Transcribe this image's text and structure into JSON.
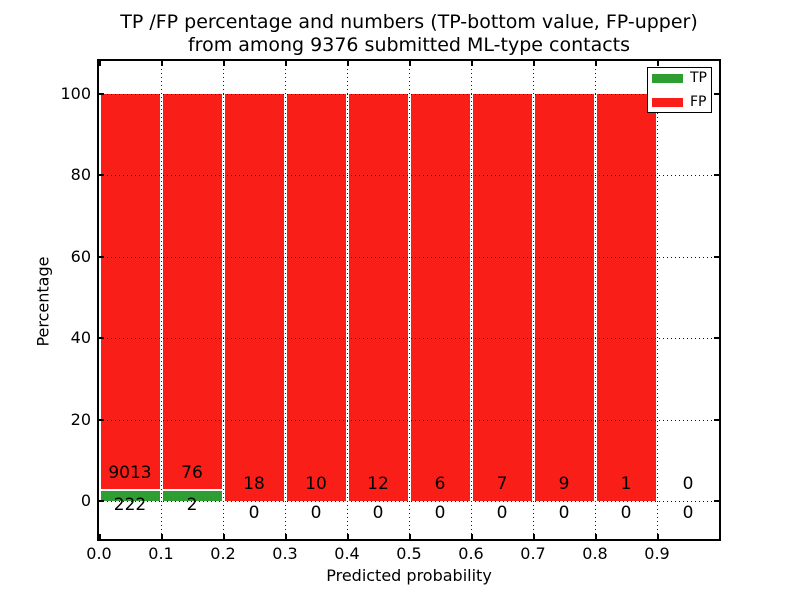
{
  "title": {
    "line1": "TP /FP percentage and numbers (TP-bottom value, FP-upper)",
    "line2": "from among 9376 submitted ML-type contacts"
  },
  "axes": {
    "xlabel": "Predicted probability",
    "ylabel": "Percentage",
    "x_tick_labels": [
      "0.0",
      "0.1",
      "0.2",
      "0.3",
      "0.4",
      "0.5",
      "0.6",
      "0.7",
      "0.8",
      "0.9"
    ],
    "y_tick_values": [
      0,
      20,
      40,
      60,
      80,
      100
    ]
  },
  "legend": {
    "items": [
      {
        "label": "TP",
        "color": "#2e9d32"
      },
      {
        "label": "FP",
        "color": "#fa1e19"
      }
    ]
  },
  "colors": {
    "tp": "#2e9d32",
    "fp": "#fa1e19",
    "bar_edge": "#ffffff",
    "grid": "#151515"
  },
  "chart_data": {
    "type": "bar",
    "stacked": true,
    "title": "TP /FP percentage and numbers (TP-bottom value, FP-upper) from among 9376 submitted ML-type contacts",
    "xlabel": "Predicted probability",
    "ylabel": "Percentage",
    "xlim": [
      0.0,
      1.0
    ],
    "ylim": [
      -10,
      108
    ],
    "grid": "dotted",
    "legend_position": "upper right",
    "total_contacts": 9376,
    "bin_width": 0.1,
    "categories": [
      "0.0-0.1",
      "0.1-0.2",
      "0.2-0.3",
      "0.3-0.4",
      "0.4-0.5",
      "0.5-0.6",
      "0.6-0.7",
      "0.7-0.8",
      "0.8-0.9",
      "0.9-1.0"
    ],
    "series": [
      {
        "name": "TP",
        "counts": [
          222,
          2,
          0,
          0,
          0,
          0,
          0,
          0,
          0,
          0
        ],
        "pct": [
          2.4,
          2.56,
          0,
          0,
          0,
          0,
          0,
          0,
          0,
          0
        ]
      },
      {
        "name": "FP",
        "counts": [
          9013,
          76,
          18,
          10,
          12,
          6,
          7,
          9,
          1,
          0
        ],
        "pct": [
          97.6,
          97.44,
          100,
          100,
          100,
          100,
          100,
          100,
          100,
          0
        ]
      }
    ]
  }
}
